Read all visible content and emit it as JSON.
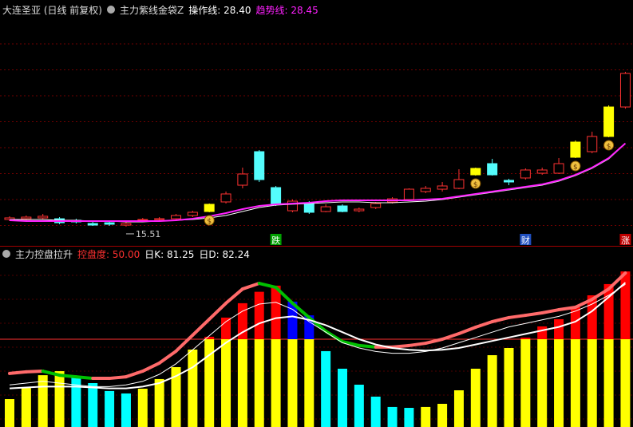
{
  "chart_data": [
    {
      "type": "candlestick",
      "title": "大连圣亚 (日线 前复权)",
      "indicator": "主力紫线金袋Z",
      "ylim": [
        12.53,
        50.72
      ],
      "candles": {
        "open": [
          16.62,
          16.74,
          16.87,
          16.74,
          16.5,
          16.0,
          16.12,
          15.75,
          16.5,
          16.62,
          16.74,
          17.24,
          17.86,
          19.35,
          21.95,
          27.16,
          21.58,
          17.98,
          19.22,
          17.86,
          18.73,
          17.98,
          18.48,
          19.35,
          19.72,
          20.96,
          21.33,
          21.46,
          23.56,
          25.3,
          22.7,
          23.07,
          23.81,
          23.81,
          26.29,
          27.16,
          29.52,
          34.1
        ],
        "close": [
          16.87,
          16.99,
          17.12,
          16.12,
          16.25,
          15.75,
          15.88,
          16.0,
          16.62,
          16.74,
          17.24,
          17.74,
          18.98,
          20.59,
          23.69,
          22.82,
          19.1,
          19.47,
          17.74,
          18.6,
          17.86,
          18.23,
          19.1,
          19.84,
          21.33,
          21.46,
          21.83,
          22.82,
          24.56,
          23.56,
          22.45,
          24.31,
          24.31,
          25.3,
          28.65,
          29.52,
          34.1,
          39.31
        ],
        "high": [
          17.12,
          17.24,
          17.49,
          16.99,
          16.74,
          16.25,
          16.37,
          16.25,
          16.87,
          16.99,
          17.49,
          17.98,
          19.1,
          20.96,
          24.68,
          27.41,
          21.83,
          19.72,
          19.47,
          18.98,
          18.98,
          18.48,
          19.35,
          20.09,
          21.46,
          21.83,
          22.45,
          24.43,
          24.68,
          26.04,
          22.94,
          24.56,
          24.68,
          26.17,
          28.9,
          30.26,
          34.35,
          39.56
        ],
        "low": [
          16.37,
          16.5,
          16.62,
          15.88,
          16.0,
          15.63,
          15.63,
          15.51,
          16.25,
          16.37,
          16.5,
          16.99,
          17.74,
          19.1,
          21.46,
          22.45,
          18.73,
          17.74,
          17.49,
          17.74,
          17.74,
          17.74,
          18.23,
          19.1,
          19.47,
          20.71,
          20.96,
          21.33,
          23.44,
          23.44,
          21.95,
          22.82,
          23.56,
          23.69,
          26.17,
          26.91,
          29.39,
          33.84
        ]
      },
      "up_color": "#ff3232",
      "down_color": "#54fcfc",
      "signal_color": "#ffff00",
      "signal_days": [
        12,
        28,
        34,
        36
      ],
      "min_index": 7,
      "series": [
        {
          "name": "操作线:",
          "color": "#ffffff",
          "value_label": "28.40",
          "values": [
            16.62,
            16.62,
            16.62,
            16.5,
            16.5,
            16.37,
            16.37,
            16.25,
            16.25,
            16.37,
            16.5,
            16.62,
            16.87,
            17.24,
            17.86,
            18.48,
            18.85,
            19.0,
            19.1,
            19.22,
            19.35,
            19.35,
            19.22,
            19.22,
            19.35,
            19.47,
            19.72,
            20.09,
            20.46,
            20.84,
            21.21,
            21.58,
            21.95,
            22.57,
            23.44,
            24.56,
            26.04,
            28.4
          ]
        },
        {
          "name": "趋势线:",
          "color": "#ff20ff",
          "values": [
            16.5,
            16.37,
            16.37,
            16.37,
            16.37,
            16.37,
            16.37,
            16.37,
            16.37,
            16.37,
            16.5,
            16.74,
            17.12,
            17.61,
            18.23,
            18.73,
            18.98,
            19.1,
            19.22,
            19.47,
            19.59,
            19.59,
            19.59,
            19.59,
            19.59,
            19.72,
            19.84,
            20.22,
            20.59,
            20.96,
            21.33,
            21.7,
            22.08,
            22.7,
            23.56,
            24.68,
            26.17,
            28.45
          ]
        }
      ],
      "events": [
        {
          "index": 16,
          "label": "跌",
          "color": "#00a000"
        },
        {
          "index": 31,
          "label": "财",
          "color": "#2050c0"
        },
        {
          "index": 37,
          "label": "涨",
          "color": "#c00000"
        }
      ]
    },
    {
      "type": "bar",
      "indicator": "主力控盘拉升",
      "ylim": [
        0,
        100
      ],
      "level": {
        "name": "控盘度:",
        "value": 50,
        "value_label": "50.00",
        "color": "#ff3030"
      },
      "values": [
        15.9,
        22.7,
        29.5,
        31.8,
        28.6,
        25,
        20.5,
        19.1,
        21.8,
        27.3,
        34.1,
        44.1,
        51.4,
        62.3,
        70.5,
        77,
        80.5,
        71.4,
        63.6,
        43.2,
        33.2,
        24.1,
        17.3,
        11.4,
        10.9,
        11.4,
        13.2,
        20.9,
        33.2,
        40.9,
        45,
        50.9,
        57.3,
        61.4,
        68.2,
        75,
        81.4,
        88.6
      ],
      "bar_colors": {
        "up_below": "#ffff00",
        "down_below": "#00ffff",
        "up_above": "#ff0000",
        "down_above": "#0000ff"
      },
      "trend": {
        "color": "#ff6a6a",
        "down_color": "#00c000",
        "values": [
          30.5,
          31.4,
          31.8,
          29.5,
          28.6,
          27.7,
          27.7,
          28.6,
          31.8,
          36.4,
          43.2,
          52.3,
          61.4,
          70.5,
          78.6,
          81.8,
          79.5,
          70.5,
          62.3,
          54.5,
          48.6,
          46.4,
          45.5,
          45.5,
          46.4,
          47.7,
          50,
          53.2,
          56.8,
          60,
          62.3,
          63.6,
          65,
          66.8,
          68.2,
          72.7,
          78.6,
          87.7
        ]
      },
      "series": [
        {
          "name": "日K:",
          "color": "#ffffff",
          "values": [
            24,
            25,
            26,
            25,
            24,
            23,
            23,
            24,
            26,
            30,
            36,
            44,
            52,
            60,
            66,
            70,
            71,
            67,
            60,
            54,
            48,
            45,
            43,
            42,
            42,
            43,
            45,
            48,
            51,
            54,
            57,
            59,
            61,
            63,
            66,
            70,
            75,
            81.25
          ]
        },
        {
          "name": "日D:",
          "color": "#ffffff",
          "values": [
            22,
            22.5,
            23,
            23,
            23,
            22.5,
            22,
            22,
            23,
            25,
            29,
            34,
            41,
            48,
            54,
            59,
            62,
            63,
            61,
            58,
            54,
            50,
            47,
            45,
            44,
            43.5,
            44,
            45,
            47,
            49,
            51,
            53,
            55,
            57,
            60,
            66,
            74,
            82.24
          ]
        }
      ]
    }
  ]
}
